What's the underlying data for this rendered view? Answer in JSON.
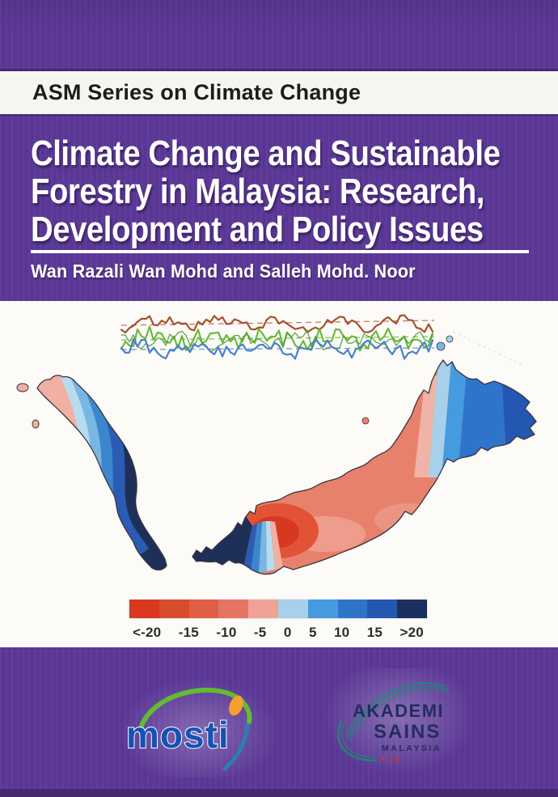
{
  "cover": {
    "series_label": "ASM Series on Climate Change",
    "title_lines": [
      "Climate Change and Sustainable",
      "Forestry in Malaysia: Research,",
      "Development and Policy Issues"
    ],
    "authors": "Wan Razali Wan Mohd and Salleh Mohd. Noor"
  },
  "figure": {
    "legend": {
      "labels": [
        "<-20",
        "-15",
        "-10",
        "-5",
        "0",
        "5",
        "10",
        "15",
        ">20"
      ],
      "colors": [
        "#d8391f",
        "#d84b2b",
        "#df5f46",
        "#e57462",
        "#efa397",
        "#a7d0ea",
        "#459be0",
        "#2e74ca",
        "#2457b2",
        "#1c3060"
      ]
    }
  },
  "logos": {
    "mosti": {
      "wordmark": "mosti"
    },
    "asm": {
      "line1": "AKADEMI",
      "line2": "SAINS",
      "line3": "MALAYSIA"
    }
  },
  "colors": {
    "cover_purple": "#5a3795",
    "map_navy": "#1e3058",
    "map_salmon": "#e8816c",
    "mosti_blue": "#1652b4",
    "asm_teal": "#1a8a74"
  }
}
